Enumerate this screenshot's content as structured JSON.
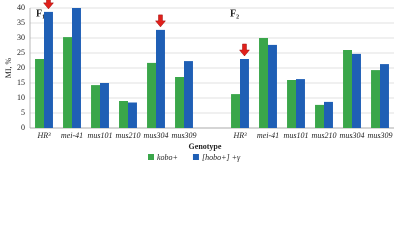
{
  "chart_data": {
    "type": "bar",
    "y_label": "MI, %",
    "x_label": "Genotype",
    "annotations": [
      "F₁",
      "F₂"
    ],
    "categories": [
      "HR³",
      "mei-41",
      "mus101",
      "mus210",
      "mus304",
      "mus309",
      null,
      "HR³",
      "mei-41",
      "mus101",
      "mus210",
      "mus304",
      "mus309"
    ],
    "series": [
      {
        "name": "kobo+",
        "color": "#3aa64a",
        "values": [
          23,
          30.3,
          14.3,
          9,
          21.7,
          17,
          null,
          11.3,
          30,
          16,
          7.7,
          26,
          19.3
        ]
      },
      {
        "name": "[hobo+] +γ",
        "color": "#1f5fb5",
        "values": [
          38.7,
          40,
          15,
          8.5,
          32.7,
          22.3,
          null,
          23,
          27.7,
          16.3,
          8.7,
          24.7,
          21.3
        ]
      }
    ],
    "ylim": [
      0,
      40
    ],
    "yticks": [
      0,
      5,
      10,
      15,
      20,
      25,
      30,
      35,
      40
    ],
    "grid": true,
    "legend": "bottom"
  }
}
